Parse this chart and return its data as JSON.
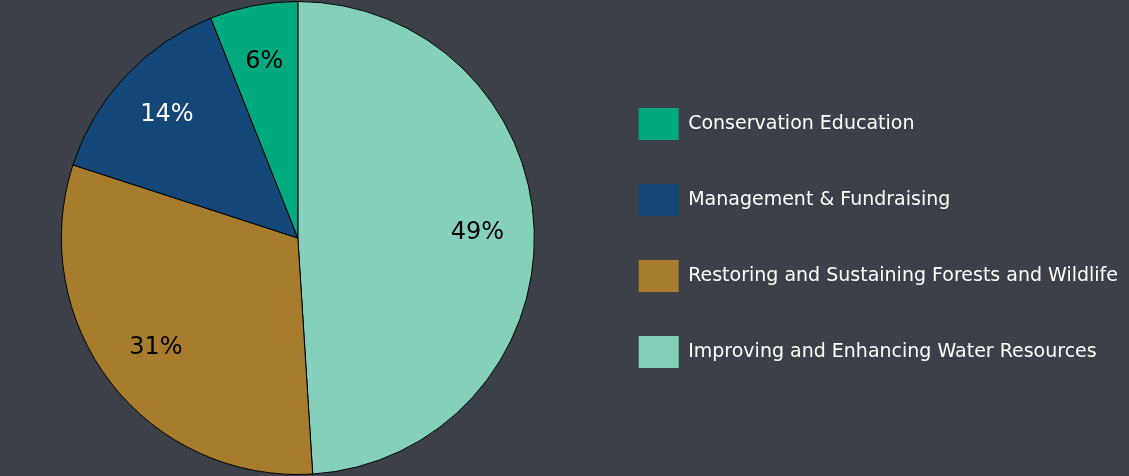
{
  "chart_data": {
    "type": "pie",
    "categories": [
      "Improving and Enhancing Water Resources",
      "Restoring and Sustaining Forests and Wildlife",
      "Management & Fundraising",
      "Conservation Education"
    ],
    "values": [
      49,
      31,
      14,
      6
    ],
    "colors": [
      "#84d0bc",
      "#a77c2c",
      "#134778",
      "#00a97e"
    ],
    "value_labels": [
      "49%",
      "31%",
      "14%",
      "6%"
    ],
    "legend": "right"
  }
}
